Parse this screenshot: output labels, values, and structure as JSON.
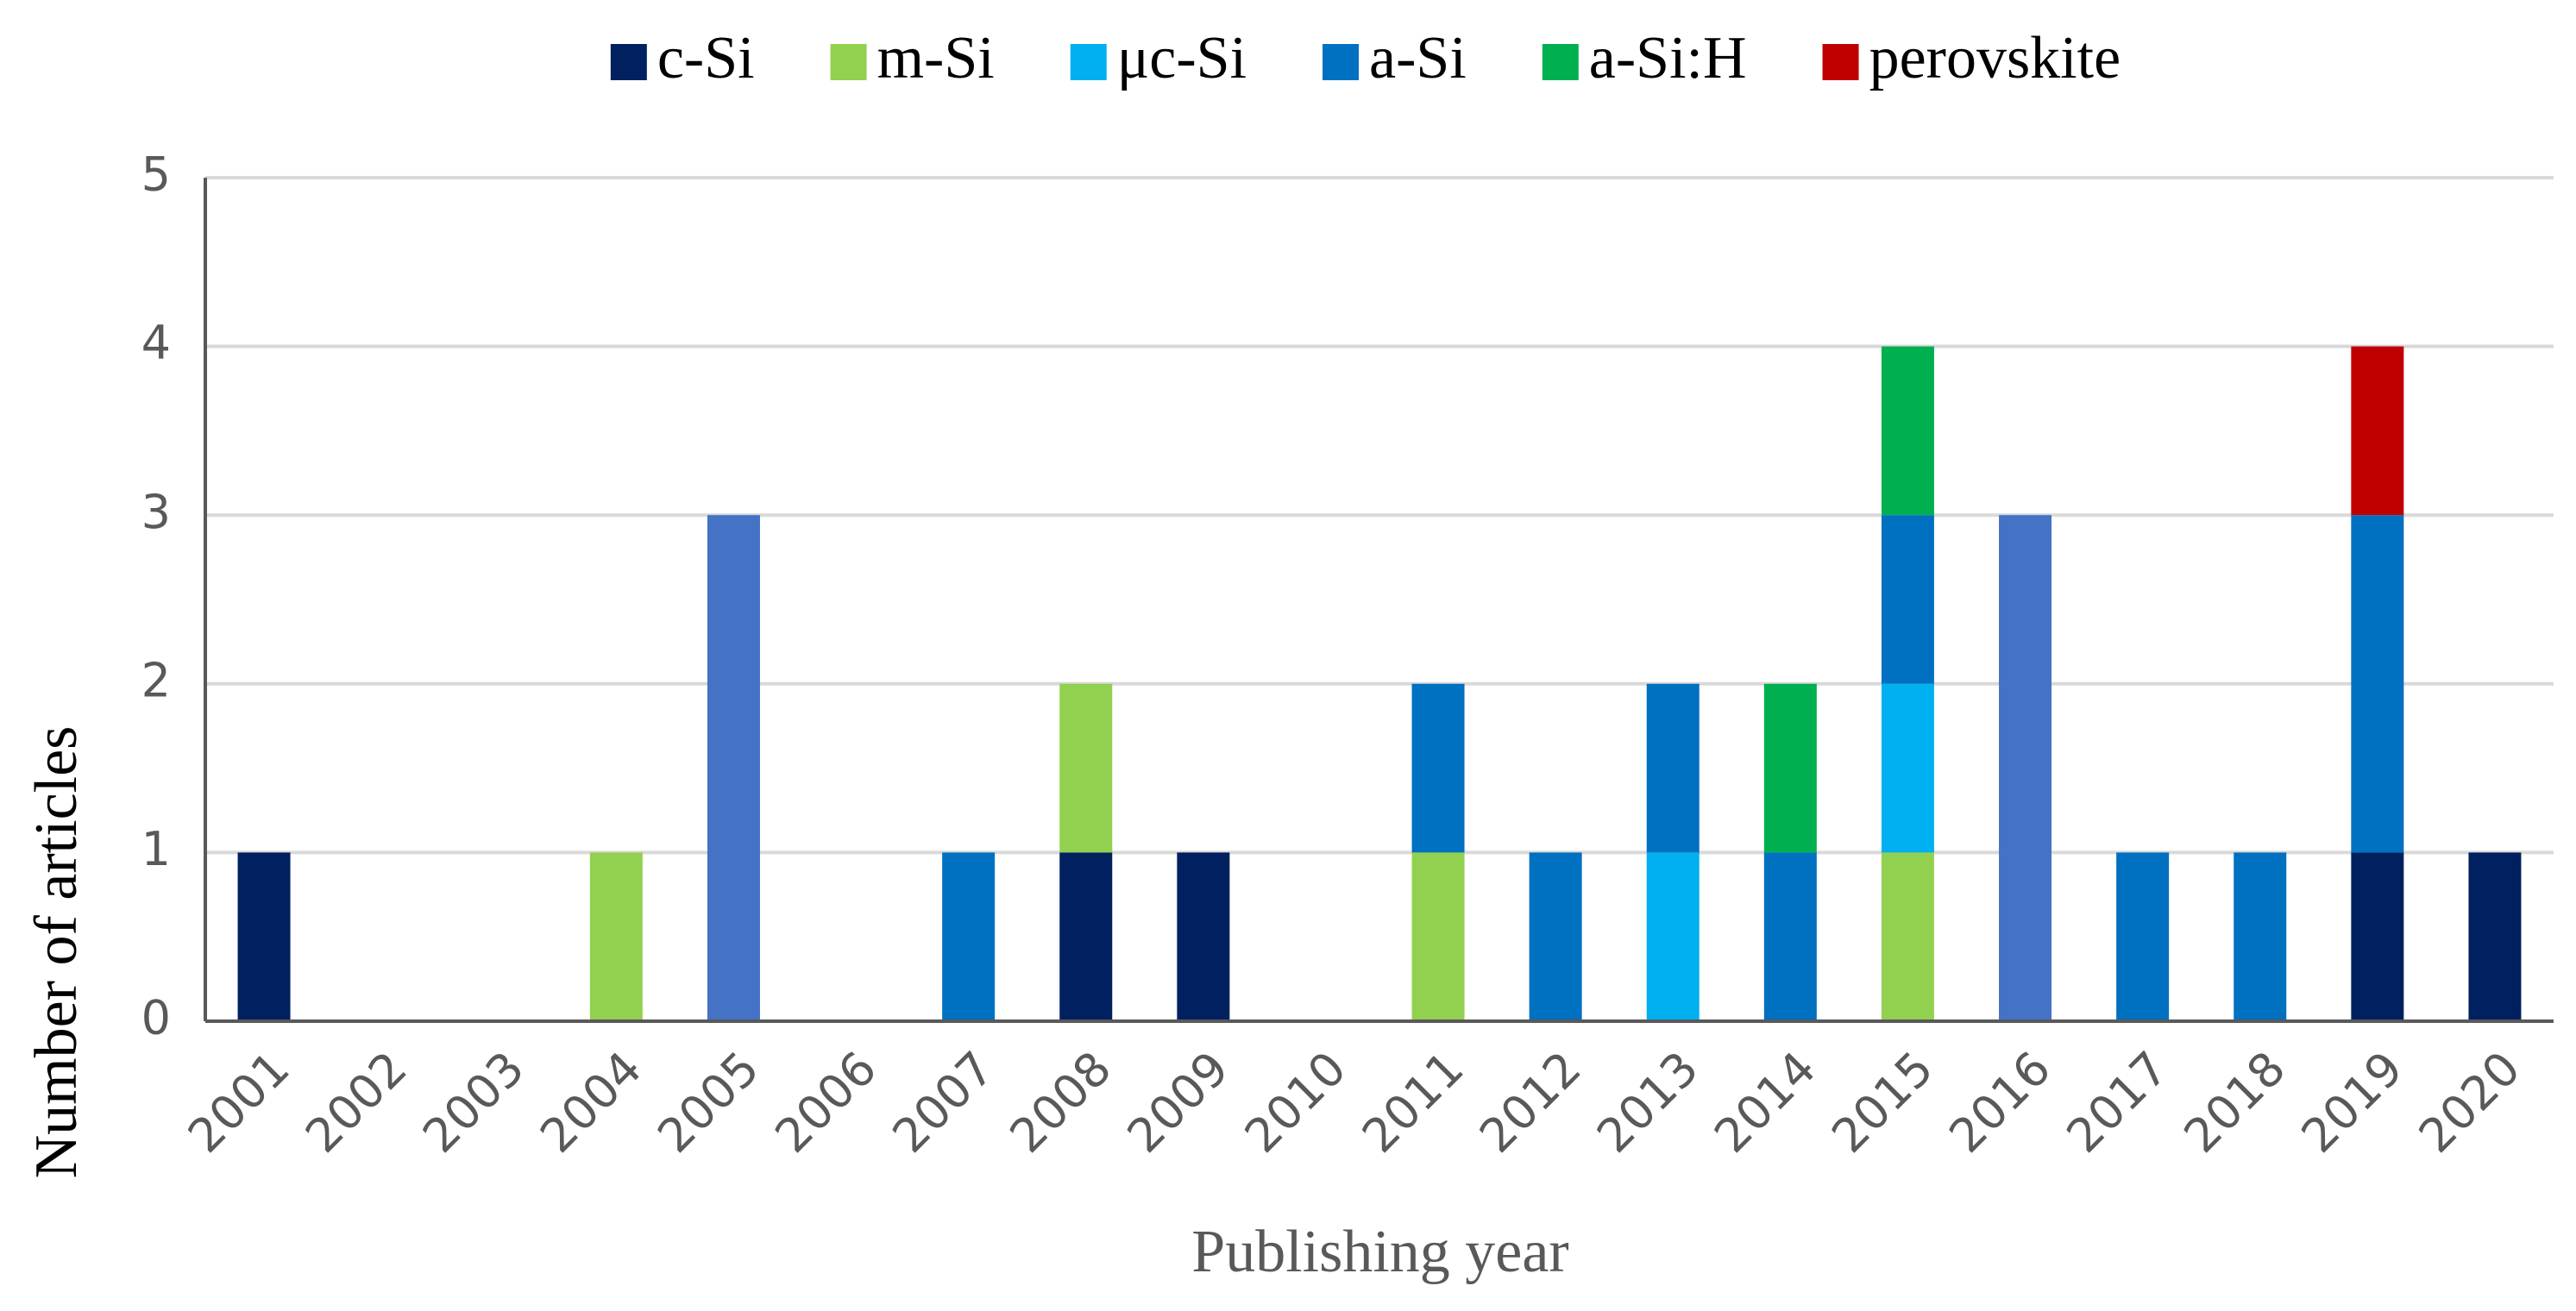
{
  "chart_data": {
    "type": "stacked-bar",
    "x_label": "Publishing year",
    "y_label": "Number of articles",
    "categories": [
      "2001",
      "2002",
      "2003",
      "2004",
      "2005",
      "2006",
      "2007",
      "2008",
      "2009",
      "2010",
      "2011",
      "2012",
      "2013",
      "2014",
      "2015",
      "2016",
      "2017",
      "2018",
      "2019",
      "2020"
    ],
    "series": [
      {
        "name": "c-Si",
        "color": "#002060",
        "values": [
          1,
          0,
          0,
          0,
          0,
          0,
          0,
          1,
          1,
          0,
          0,
          0,
          0,
          0,
          0,
          0,
          0,
          0,
          1,
          1
        ]
      },
      {
        "name": "m-Si",
        "color": "#92d050",
        "values": [
          0,
          0,
          0,
          1,
          0,
          0,
          0,
          1,
          0,
          0,
          1,
          0,
          0,
          0,
          1,
          0,
          0,
          0,
          0,
          0
        ]
      },
      {
        "name": "μc-Si",
        "color": "#00b0f0",
        "values": [
          0,
          0,
          0,
          0,
          0,
          0,
          0,
          0,
          0,
          0,
          0,
          0,
          1,
          0,
          1,
          0,
          0,
          0,
          0,
          0
        ]
      },
      {
        "name": "a-Si",
        "color": "#0070c0",
        "values": [
          0,
          0,
          0,
          0,
          0,
          0,
          1,
          0,
          0,
          0,
          1,
          1,
          1,
          1,
          1,
          0,
          1,
          1,
          2,
          0
        ]
      },
      {
        "name": "a-Si:H",
        "color": "#00b050",
        "values": [
          0,
          0,
          0,
          0,
          0,
          0,
          0,
          0,
          0,
          0,
          0,
          0,
          0,
          1,
          1,
          0,
          0,
          0,
          0,
          0
        ]
      },
      {
        "name": "perovskite",
        "color": "#c00000",
        "values": [
          0,
          0,
          0,
          0,
          0,
          0,
          0,
          0,
          0,
          0,
          0,
          0,
          0,
          0,
          0,
          0,
          0,
          0,
          1,
          0
        ]
      },
      {
        "color": "#4472c4",
        "values": [
          0,
          0,
          0,
          0,
          3,
          0,
          0,
          0,
          0,
          0,
          0,
          0,
          0,
          0,
          0,
          3,
          0,
          0,
          0,
          0
        ]
      }
    ],
    "ylim": [
      0,
      5
    ],
    "yticks": [
      0,
      1,
      2,
      3,
      4,
      5
    ],
    "grid": true,
    "legend": "top"
  }
}
